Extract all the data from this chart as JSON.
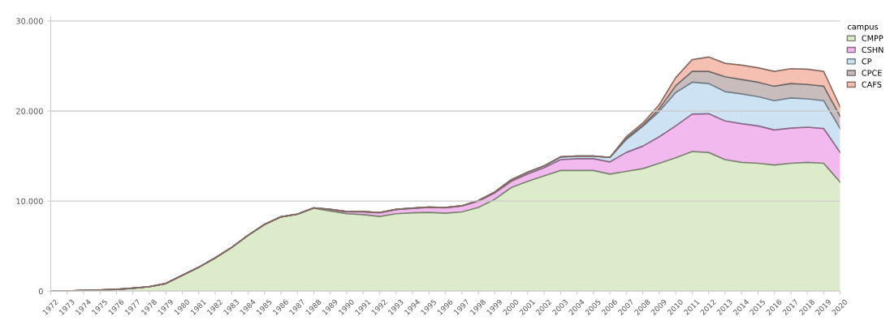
{
  "chart_data": {
    "type": "area",
    "stacked": true,
    "legend_title": "campus",
    "legend": "right",
    "grid": "y",
    "categories": [
      "1972",
      "1973",
      "1974",
      "1975",
      "1976",
      "1977",
      "1978",
      "1979",
      "1980",
      "1981",
      "1982",
      "1983",
      "1984",
      "1985",
      "1986",
      "1987",
      "1988",
      "1989",
      "1990",
      "1991",
      "1992",
      "1993",
      "1994",
      "1995",
      "1996",
      "1997",
      "1998",
      "1999",
      "2000",
      "2001",
      "2002",
      "2003",
      "2004",
      "2005",
      "2006",
      "2007",
      "2008",
      "2009",
      "2010",
      "2011",
      "2012",
      "2013",
      "2014",
      "2015",
      "2016",
      "2017",
      "2018",
      "2019",
      "2020"
    ],
    "ylim": [
      0,
      30500
    ],
    "yticks": [
      {
        "value": 0,
        "label": "0"
      },
      {
        "value": 10000,
        "label": "10.000"
      },
      {
        "value": 20000,
        "label": "20.000"
      },
      {
        "value": 30000,
        "label": "30.000"
      }
    ],
    "series": [
      {
        "name": "CMPP",
        "color": "#dcebc9",
        "values": [
          0,
          30,
          80,
          130,
          200,
          330,
          500,
          850,
          1750,
          2650,
          3700,
          4850,
          6200,
          7400,
          8250,
          8550,
          9200,
          8900,
          8600,
          8500,
          8300,
          8600,
          8700,
          8750,
          8650,
          8800,
          9300,
          10200,
          11500,
          12200,
          12800,
          13400,
          13400,
          13400,
          13000,
          13300,
          13600,
          14200,
          14800,
          15500,
          15400,
          14600,
          14300,
          14200,
          14000,
          14200,
          14300,
          14200,
          12100
        ]
      },
      {
        "name": "CSHN",
        "color": "#f2b9ef",
        "values": [
          0,
          0,
          0,
          0,
          0,
          0,
          0,
          0,
          0,
          0,
          0,
          0,
          0,
          0,
          0,
          0,
          50,
          150,
          200,
          300,
          400,
          450,
          500,
          550,
          600,
          650,
          700,
          700,
          700,
          800,
          900,
          1200,
          1300,
          1300,
          1350,
          2100,
          2500,
          2950,
          3550,
          4150,
          4300,
          4300,
          4300,
          4150,
          3900,
          3900,
          3900,
          3850,
          3300
        ]
      },
      {
        "name": "CP",
        "color": "#cde2f3",
        "values": [
          0,
          0,
          0,
          0,
          0,
          0,
          0,
          0,
          0,
          0,
          0,
          0,
          0,
          0,
          0,
          0,
          0,
          30,
          30,
          30,
          30,
          30,
          30,
          30,
          30,
          30,
          50,
          100,
          150,
          200,
          200,
          300,
          300,
          300,
          500,
          1450,
          2200,
          2800,
          3700,
          3550,
          3350,
          3250,
          3300,
          3250,
          3250,
          3350,
          3150,
          3100,
          2650
        ]
      },
      {
        "name": "CPCE",
        "color": "#c8bcbc",
        "values": [
          0,
          0,
          0,
          0,
          0,
          0,
          0,
          0,
          0,
          0,
          0,
          0,
          0,
          0,
          0,
          0,
          0,
          0,
          0,
          0,
          0,
          0,
          0,
          0,
          0,
          0,
          0,
          0,
          0,
          0,
          0,
          0,
          0,
          0,
          0,
          100,
          100,
          300,
          750,
          1200,
          1350,
          1650,
          1600,
          1600,
          1600,
          1600,
          1600,
          1600,
          1350
        ]
      },
      {
        "name": "CAFS",
        "color": "#f5c0b2",
        "values": [
          0,
          0,
          0,
          0,
          0,
          0,
          0,
          0,
          0,
          0,
          0,
          0,
          0,
          0,
          0,
          0,
          0,
          0,
          0,
          0,
          0,
          0,
          0,
          0,
          0,
          0,
          0,
          0,
          0,
          0,
          0,
          0,
          0,
          0,
          0,
          200,
          250,
          450,
          900,
          1300,
          1600,
          1500,
          1600,
          1600,
          1650,
          1650,
          1700,
          1650,
          1050
        ]
      }
    ]
  }
}
